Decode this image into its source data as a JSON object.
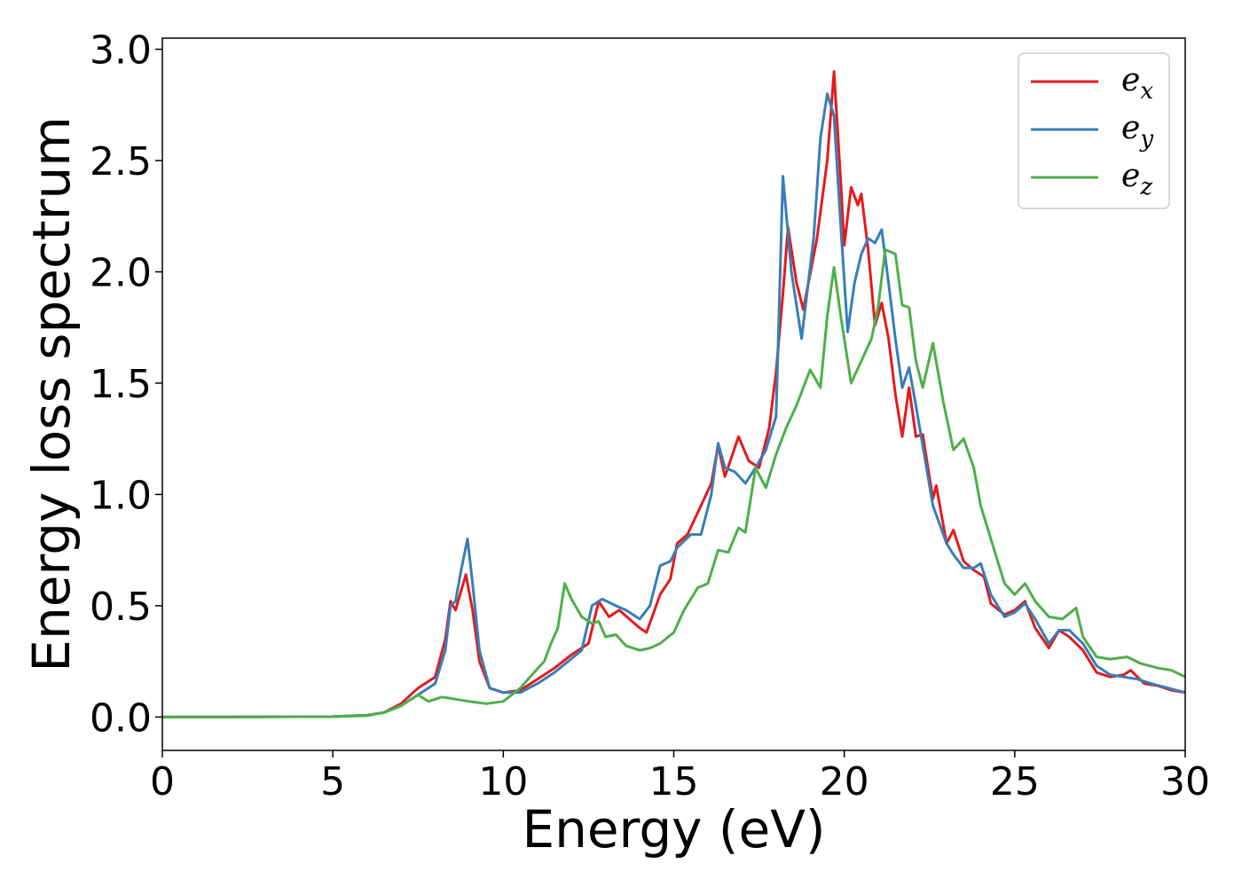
{
  "chart_data": {
    "type": "line",
    "title": "",
    "xlabel": "Energy (eV)",
    "ylabel": "Energy loss spectrum",
    "xlim": [
      0,
      30
    ],
    "ylim": [
      -0.15,
      3.05
    ],
    "xticks": [
      "0",
      "5",
      "10",
      "15",
      "20",
      "25",
      "30"
    ],
    "yticks": [
      "0.0",
      "0.5",
      "1.0",
      "1.5",
      "2.0",
      "2.5",
      "3.0"
    ],
    "grid": false,
    "legend_position": "top-right",
    "series": [
      {
        "name": "e",
        "subscript": "x",
        "color": "#e41a1c",
        "points": [
          [
            0,
            0
          ],
          [
            5,
            0.002
          ],
          [
            6,
            0.008
          ],
          [
            6.5,
            0.02
          ],
          [
            7,
            0.06
          ],
          [
            7.5,
            0.13
          ],
          [
            8,
            0.18
          ],
          [
            8.3,
            0.35
          ],
          [
            8.45,
            0.52
          ],
          [
            8.6,
            0.48
          ],
          [
            8.75,
            0.56
          ],
          [
            8.9,
            0.64
          ],
          [
            9.1,
            0.48
          ],
          [
            9.3,
            0.25
          ],
          [
            9.6,
            0.13
          ],
          [
            10,
            0.11
          ],
          [
            10.5,
            0.12
          ],
          [
            11,
            0.17
          ],
          [
            11.5,
            0.22
          ],
          [
            12,
            0.28
          ],
          [
            12.5,
            0.33
          ],
          [
            12.8,
            0.52
          ],
          [
            13.1,
            0.45
          ],
          [
            13.4,
            0.48
          ],
          [
            13.7,
            0.44
          ],
          [
            14,
            0.4
          ],
          [
            14.2,
            0.38
          ],
          [
            14.6,
            0.55
          ],
          [
            14.9,
            0.62
          ],
          [
            15.1,
            0.78
          ],
          [
            15.4,
            0.82
          ],
          [
            15.8,
            0.95
          ],
          [
            16.1,
            1.05
          ],
          [
            16.3,
            1.22
          ],
          [
            16.5,
            1.08
          ],
          [
            16.9,
            1.26
          ],
          [
            17.2,
            1.15
          ],
          [
            17.5,
            1.12
          ],
          [
            17.8,
            1.3
          ],
          [
            18,
            1.55
          ],
          [
            18.2,
            1.9
          ],
          [
            18.35,
            2.2
          ],
          [
            18.6,
            1.95
          ],
          [
            18.8,
            1.83
          ],
          [
            19.2,
            2.15
          ],
          [
            19.5,
            2.5
          ],
          [
            19.7,
            2.9
          ],
          [
            19.9,
            2.4
          ],
          [
            20,
            2.12
          ],
          [
            20.2,
            2.38
          ],
          [
            20.4,
            2.3
          ],
          [
            20.5,
            2.35
          ],
          [
            20.7,
            2.1
          ],
          [
            20.9,
            1.76
          ],
          [
            21.1,
            1.86
          ],
          [
            21.3,
            1.7
          ],
          [
            21.5,
            1.45
          ],
          [
            21.7,
            1.26
          ],
          [
            21.9,
            1.48
          ],
          [
            22.1,
            1.26
          ],
          [
            22.3,
            1.27
          ],
          [
            22.6,
            0.98
          ],
          [
            22.7,
            1.04
          ],
          [
            23,
            0.78
          ],
          [
            23.2,
            0.84
          ],
          [
            23.5,
            0.7
          ],
          [
            23.8,
            0.66
          ],
          [
            24.1,
            0.63
          ],
          [
            24.3,
            0.51
          ],
          [
            24.7,
            0.46
          ],
          [
            25,
            0.48
          ],
          [
            25.3,
            0.52
          ],
          [
            25.6,
            0.4
          ],
          [
            26,
            0.31
          ],
          [
            26.3,
            0.39
          ],
          [
            26.6,
            0.36
          ],
          [
            27,
            0.3
          ],
          [
            27.4,
            0.2
          ],
          [
            27.8,
            0.18
          ],
          [
            28.2,
            0.19
          ],
          [
            28.4,
            0.21
          ],
          [
            28.8,
            0.15
          ],
          [
            29.2,
            0.14
          ],
          [
            29.6,
            0.12
          ],
          [
            30,
            0.11
          ]
        ]
      },
      {
        "name": "e",
        "subscript": "y",
        "color": "#377eb8",
        "points": [
          [
            0,
            0
          ],
          [
            5,
            0.002
          ],
          [
            6,
            0.008
          ],
          [
            6.5,
            0.02
          ],
          [
            7,
            0.05
          ],
          [
            7.5,
            0.1
          ],
          [
            8,
            0.15
          ],
          [
            8.3,
            0.3
          ],
          [
            8.45,
            0.5
          ],
          [
            8.6,
            0.52
          ],
          [
            8.75,
            0.65
          ],
          [
            8.95,
            0.8
          ],
          [
            9.1,
            0.6
          ],
          [
            9.3,
            0.3
          ],
          [
            9.6,
            0.13
          ],
          [
            10,
            0.11
          ],
          [
            10.5,
            0.11
          ],
          [
            11,
            0.15
          ],
          [
            11.5,
            0.2
          ],
          [
            11.9,
            0.25
          ],
          [
            12.3,
            0.3
          ],
          [
            12.6,
            0.5
          ],
          [
            12.9,
            0.53
          ],
          [
            13.3,
            0.5
          ],
          [
            13.6,
            0.48
          ],
          [
            14,
            0.44
          ],
          [
            14.3,
            0.5
          ],
          [
            14.6,
            0.68
          ],
          [
            14.9,
            0.7
          ],
          [
            15.1,
            0.76
          ],
          [
            15.5,
            0.82
          ],
          [
            15.8,
            0.82
          ],
          [
            16.1,
            1.0
          ],
          [
            16.3,
            1.23
          ],
          [
            16.5,
            1.12
          ],
          [
            16.8,
            1.1
          ],
          [
            17.1,
            1.05
          ],
          [
            17.4,
            1.12
          ],
          [
            17.7,
            1.2
          ],
          [
            18,
            1.35
          ],
          [
            18.2,
            2.43
          ],
          [
            18.45,
            2.0
          ],
          [
            18.75,
            1.7
          ],
          [
            19.1,
            2.15
          ],
          [
            19.3,
            2.6
          ],
          [
            19.5,
            2.8
          ],
          [
            19.7,
            2.7
          ],
          [
            19.9,
            2.2
          ],
          [
            20.1,
            1.73
          ],
          [
            20.3,
            1.95
          ],
          [
            20.5,
            2.08
          ],
          [
            20.7,
            2.15
          ],
          [
            20.9,
            2.13
          ],
          [
            21.1,
            2.19
          ],
          [
            21.3,
            1.95
          ],
          [
            21.5,
            1.7
          ],
          [
            21.7,
            1.48
          ],
          [
            21.9,
            1.57
          ],
          [
            22.1,
            1.4
          ],
          [
            22.3,
            1.22
          ],
          [
            22.6,
            0.95
          ],
          [
            23,
            0.78
          ],
          [
            23.2,
            0.73
          ],
          [
            23.5,
            0.67
          ],
          [
            23.8,
            0.67
          ],
          [
            24,
            0.69
          ],
          [
            24.3,
            0.55
          ],
          [
            24.7,
            0.45
          ],
          [
            25,
            0.47
          ],
          [
            25.3,
            0.51
          ],
          [
            25.6,
            0.44
          ],
          [
            26,
            0.33
          ],
          [
            26.3,
            0.39
          ],
          [
            26.6,
            0.39
          ],
          [
            27,
            0.33
          ],
          [
            27.4,
            0.23
          ],
          [
            27.8,
            0.19
          ],
          [
            28.2,
            0.18
          ],
          [
            28.6,
            0.17
          ],
          [
            29,
            0.15
          ],
          [
            29.5,
            0.13
          ],
          [
            30,
            0.11
          ]
        ]
      },
      {
        "name": "e",
        "subscript": "z",
        "color": "#4daf4a",
        "points": [
          [
            0,
            0
          ],
          [
            5,
            0.002
          ],
          [
            6,
            0.006
          ],
          [
            6.5,
            0.02
          ],
          [
            7,
            0.05
          ],
          [
            7.3,
            0.08
          ],
          [
            7.5,
            0.1
          ],
          [
            7.8,
            0.07
          ],
          [
            8.2,
            0.09
          ],
          [
            8.6,
            0.08
          ],
          [
            9,
            0.07
          ],
          [
            9.5,
            0.06
          ],
          [
            10,
            0.07
          ],
          [
            10.5,
            0.13
          ],
          [
            10.9,
            0.2
          ],
          [
            11.2,
            0.25
          ],
          [
            11.4,
            0.33
          ],
          [
            11.6,
            0.4
          ],
          [
            11.8,
            0.6
          ],
          [
            12,
            0.53
          ],
          [
            12.3,
            0.45
          ],
          [
            12.6,
            0.42
          ],
          [
            12.8,
            0.43
          ],
          [
            13,
            0.36
          ],
          [
            13.3,
            0.37
          ],
          [
            13.6,
            0.32
          ],
          [
            14,
            0.3
          ],
          [
            14.3,
            0.31
          ],
          [
            14.6,
            0.33
          ],
          [
            15,
            0.38
          ],
          [
            15.3,
            0.48
          ],
          [
            15.7,
            0.58
          ],
          [
            16,
            0.6
          ],
          [
            16.3,
            0.75
          ],
          [
            16.6,
            0.74
          ],
          [
            16.9,
            0.85
          ],
          [
            17.1,
            0.83
          ],
          [
            17.4,
            1.12
          ],
          [
            17.7,
            1.03
          ],
          [
            18,
            1.18
          ],
          [
            18.3,
            1.3
          ],
          [
            18.6,
            1.4
          ],
          [
            18.8,
            1.48
          ],
          [
            19,
            1.56
          ],
          [
            19.3,
            1.48
          ],
          [
            19.5,
            1.8
          ],
          [
            19.7,
            2.02
          ],
          [
            19.9,
            1.8
          ],
          [
            20.2,
            1.5
          ],
          [
            20.5,
            1.6
          ],
          [
            20.8,
            1.7
          ],
          [
            21,
            1.85
          ],
          [
            21.2,
            2.1
          ],
          [
            21.5,
            2.08
          ],
          [
            21.7,
            1.85
          ],
          [
            21.9,
            1.84
          ],
          [
            22.1,
            1.6
          ],
          [
            22.3,
            1.48
          ],
          [
            22.6,
            1.68
          ],
          [
            22.9,
            1.42
          ],
          [
            23.2,
            1.2
          ],
          [
            23.5,
            1.25
          ],
          [
            23.8,
            1.12
          ],
          [
            24,
            0.95
          ],
          [
            24.3,
            0.8
          ],
          [
            24.7,
            0.6
          ],
          [
            25,
            0.55
          ],
          [
            25.3,
            0.6
          ],
          [
            25.6,
            0.52
          ],
          [
            26,
            0.45
          ],
          [
            26.4,
            0.44
          ],
          [
            26.8,
            0.49
          ],
          [
            27,
            0.36
          ],
          [
            27.4,
            0.27
          ],
          [
            27.8,
            0.26
          ],
          [
            28.3,
            0.27
          ],
          [
            28.7,
            0.24
          ],
          [
            29.2,
            0.22
          ],
          [
            29.6,
            0.21
          ],
          [
            30,
            0.18
          ]
        ]
      }
    ]
  }
}
